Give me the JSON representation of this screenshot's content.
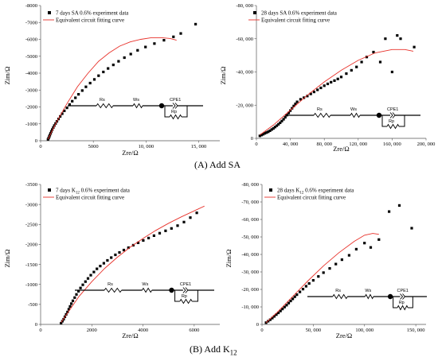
{
  "figure": {
    "caption_a": "(A) Add SA",
    "caption_b": "(B) Add K",
    "caption_b_sub": "12"
  },
  "circuit": {
    "rs": "Rs",
    "ws": "Ws",
    "cpe": "CPE1",
    "rp": "Rp"
  },
  "colors": {
    "fit": "#e8312a",
    "data": "#000000",
    "axis": "#555555"
  },
  "chart_data": [
    {
      "id": "a1",
      "type": "scatter",
      "xlabel": "Zre/Ω",
      "ylabel": "Zim/Ω",
      "xlim": [
        0,
        17000
      ],
      "ylim": [
        0,
        -8000
      ],
      "y_inverted": true,
      "xticks": [
        0,
        5000,
        10000,
        15000
      ],
      "xticklabels": [
        "0",
        "5000",
        "10, 000",
        "15, 000"
      ],
      "yticks": [
        0,
        -1000,
        -2000,
        -3000,
        -4000,
        -5000,
        -6000,
        -7000,
        -8000
      ],
      "yticklabels": [
        "0",
        "-1000",
        "-2000",
        "-3000",
        "-4000",
        "-5000",
        "-6000",
        "-7000",
        "-8000"
      ],
      "legend": {
        "data": {
          "pre": "7 days SA 0.6% experiment data",
          "sub": "",
          "post": ""
        },
        "fit": "Equivalent circuit fitting curve"
      },
      "series": [
        {
          "kind": "data",
          "x": [
            700,
            760,
            820,
            880,
            950,
            1020,
            1100,
            1200,
            1300,
            1420,
            1550,
            1700,
            1860,
            2050,
            2250,
            2500,
            2750,
            3000,
            3300,
            3600,
            3950,
            4300,
            4700,
            5100,
            5500,
            5950,
            6400,
            6900,
            7400,
            7950,
            8550,
            9200,
            9950,
            10800,
            11700,
            12600,
            13300,
            14700
          ],
          "y": [
            -80,
            -160,
            -250,
            -340,
            -440,
            -550,
            -660,
            -780,
            -900,
            -1020,
            -1150,
            -1290,
            -1440,
            -1600,
            -1770,
            -1950,
            -2140,
            -2340,
            -2540,
            -2750,
            -2970,
            -3190,
            -3410,
            -3630,
            -3850,
            -4070,
            -4280,
            -4490,
            -4700,
            -4920,
            -5130,
            -5350,
            -5550,
            -5750,
            -5950,
            -6150,
            -6350,
            -6900
          ]
        },
        {
          "kind": "fit",
          "x": [
            700,
            1500,
            2500,
            3500,
            4500,
            5500,
            6500,
            7500,
            8500,
            9500,
            10500,
            11500,
            12300,
            12900
          ],
          "y": [
            -100,
            -1100,
            -2200,
            -3200,
            -4000,
            -4700,
            -5200,
            -5600,
            -5850,
            -6000,
            -6100,
            -6100,
            -6050,
            -5950
          ]
        }
      ]
    },
    {
      "id": "a2",
      "type": "scatter",
      "xlabel": "Zre/Ω",
      "ylabel": "Zim/Ω",
      "xlim": [
        0,
        200000
      ],
      "ylim": [
        0,
        -80000
      ],
      "y_inverted": true,
      "xticks": [
        0,
        40000,
        80000,
        120000,
        160000,
        200000
      ],
      "xticklabels": [
        "0",
        "40, 000",
        "80, 000",
        "120, 000",
        "160, 000",
        "200, 000"
      ],
      "yticks": [
        0,
        -20000,
        -40000,
        -60000,
        -80000
      ],
      "yticklabels": [
        "0",
        "-20, 000",
        "-40, 000",
        "-60, 000",
        "-80, 000"
      ],
      "legend": {
        "data": {
          "pre": "28 days SA 0.6% experiment data",
          "sub": "",
          "post": ""
        },
        "fit": "Equivalent circuit fitting curve"
      },
      "series": [
        {
          "kind": "data",
          "x": [
            4000,
            6000,
            8000,
            10000,
            12000,
            14000,
            16000,
            18000,
            20000,
            22000,
            24000,
            26000,
            28000,
            30000,
            32000,
            34000,
            36000,
            38000,
            40000,
            42000,
            44000,
            46000,
            48000,
            52000,
            56000,
            60000,
            64000,
            68000,
            72000,
            76000,
            80000,
            84000,
            88000,
            92000,
            96000,
            100000,
            106000,
            112000,
            118000,
            124000,
            130000,
            138000,
            146000,
            152000,
            160000,
            166000,
            170000,
            186000
          ],
          "y": [
            -1500,
            -2000,
            -2500,
            -3000,
            -3500,
            -4000,
            -4600,
            -5300,
            -6000,
            -6800,
            -7600,
            -8500,
            -9400,
            -10400,
            -11500,
            -12700,
            -14000,
            -15300,
            -16700,
            -18100,
            -19500,
            -20800,
            -22000,
            -23500,
            -24500,
            -25500,
            -26800,
            -28000,
            -29200,
            -30400,
            -31700,
            -32800,
            -33800,
            -34800,
            -35800,
            -37000,
            -39000,
            -41000,
            -43000,
            -46000,
            -49000,
            -52000,
            -46000,
            -60000,
            -40000,
            -62000,
            -60000,
            -55000
          ]
        },
        {
          "kind": "fit",
          "x": [
            4000,
            20000,
            40000,
            60000,
            80000,
            100000,
            120000,
            140000,
            160000,
            175000,
            185000
          ],
          "y": [
            -2000,
            -8000,
            -17000,
            -26000,
            -34000,
            -41000,
            -47000,
            -51500,
            -53500,
            -53500,
            -52500
          ]
        }
      ]
    },
    {
      "id": "b1",
      "type": "scatter",
      "xlabel": "Zre/Ω",
      "ylabel": "Zim/Ω",
      "xlim": [
        0,
        7000
      ],
      "ylim": [
        0,
        -3500
      ],
      "y_inverted": true,
      "xticks": [
        0,
        2000,
        4000,
        6000
      ],
      "xticklabels": [
        "0",
        "2000",
        "4000",
        "6000"
      ],
      "yticks": [
        0,
        -500,
        -1000,
        -1500,
        -2000,
        -2500,
        -3000,
        -3500
      ],
      "yticklabels": [
        "0",
        "-500",
        "-1000",
        "-1500",
        "-2000",
        "-2500",
        "-3000",
        "-3500"
      ],
      "legend": {
        "data": {
          "pre": "7 days K",
          "sub": "12",
          "post": " 0.6% experiment data"
        },
        "fit": "Equivalent circuit fitting curve"
      },
      "series": [
        {
          "kind": "data",
          "x": [
            800,
            850,
            900,
            950,
            1000,
            1050,
            1100,
            1150,
            1200,
            1260,
            1330,
            1400,
            1480,
            1560,
            1650,
            1750,
            1850,
            1960,
            2080,
            2200,
            2330,
            2470,
            2610,
            2760,
            2920,
            3080,
            3250,
            3430,
            3620,
            3810,
            4010,
            4220,
            4430,
            4650,
            4880,
            5110,
            5350,
            5600,
            5850,
            6100
          ],
          "y": [
            -30,
            -80,
            -130,
            -190,
            -250,
            -310,
            -380,
            -450,
            -520,
            -590,
            -670,
            -750,
            -830,
            -910,
            -990,
            -1070,
            -1150,
            -1230,
            -1310,
            -1390,
            -1460,
            -1530,
            -1600,
            -1670,
            -1740,
            -1800,
            -1860,
            -1920,
            -1980,
            -2040,
            -2100,
            -2160,
            -2220,
            -2280,
            -2340,
            -2400,
            -2470,
            -2560,
            -2670,
            -2790
          ]
        },
        {
          "kind": "fit",
          "x": [
            800,
            1100,
            1500,
            2000,
            2500,
            3000,
            3500,
            4000,
            4500,
            5000,
            5500,
            6000,
            6400
          ],
          "y": [
            -50,
            -330,
            -700,
            -1070,
            -1400,
            -1680,
            -1930,
            -2150,
            -2350,
            -2530,
            -2690,
            -2840,
            -2960
          ]
        }
      ]
    },
    {
      "id": "b2",
      "type": "scatter",
      "xlabel": "Zre/Ω",
      "ylabel": "Zim/Ω",
      "xlim": [
        0,
        160000
      ],
      "ylim": [
        0,
        -80000
      ],
      "y_inverted": true,
      "xticks": [
        0,
        50000,
        100000,
        150000
      ],
      "xticklabels": [
        "0",
        "50, 000",
        "100, 000",
        "150, 000"
      ],
      "yticks": [
        0,
        -10000,
        -20000,
        -30000,
        -40000,
        -50000,
        -60000,
        -70000,
        -80000
      ],
      "yticklabels": [
        "0",
        "-10, 000",
        "-20, 000",
        "-30, 000",
        "-40, 000",
        "-50, 000",
        "-60, 000",
        "-70, 000",
        "-80, 000"
      ],
      "legend": {
        "data": {
          "pre": "28 days K",
          "sub": "12",
          "post": " 0.6% experiment data"
        },
        "fit": "Equivalent circuit fitting curve"
      },
      "series": [
        {
          "kind": "data",
          "x": [
            4000,
            6000,
            8000,
            10000,
            12000,
            14000,
            16000,
            18000,
            20000,
            22000,
            24000,
            26000,
            28000,
            30000,
            32000,
            34000,
            37000,
            40000,
            43000,
            46000,
            50000,
            55000,
            60000,
            66000,
            72000,
            78000,
            85000,
            92000,
            100000,
            106000,
            114000,
            124000,
            134000,
            146000
          ],
          "y": [
            -1000,
            -1800,
            -2700,
            -3600,
            -4600,
            -5600,
            -6600,
            -7700,
            -8800,
            -9900,
            -11000,
            -12200,
            -13400,
            -14600,
            -15800,
            -17000,
            -18600,
            -20200,
            -21800,
            -23400,
            -25200,
            -27400,
            -29600,
            -32000,
            -34500,
            -37000,
            -39500,
            -43000,
            -46500,
            -44000,
            -48500,
            -64500,
            -68000,
            -55000
          ]
        },
        {
          "kind": "fit",
          "x": [
            4000,
            15000,
            30000,
            45000,
            60000,
            75000,
            90000,
            100000,
            108000,
            114000
          ],
          "y": [
            -1000,
            -7000,
            -16000,
            -25000,
            -33500,
            -41000,
            -47500,
            -51000,
            -52000,
            -51500
          ]
        }
      ]
    }
  ]
}
